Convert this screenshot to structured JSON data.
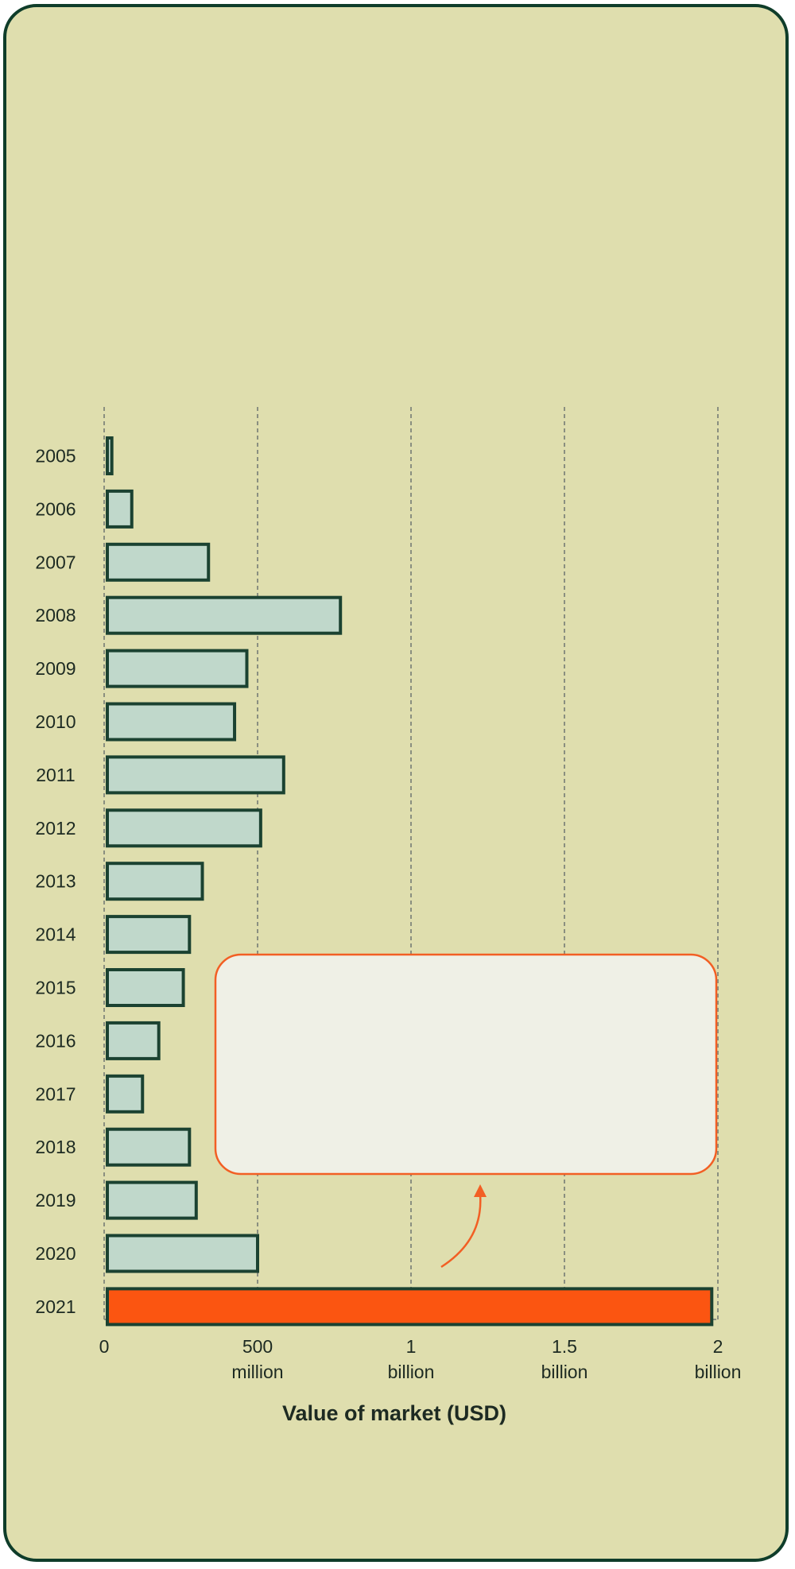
{
  "chart_data": {
    "type": "bar",
    "orientation": "horizontal",
    "categories": [
      "2005",
      "2006",
      "2007",
      "2008",
      "2009",
      "2010",
      "2011",
      "2012",
      "2013",
      "2014",
      "2015",
      "2016",
      "2017",
      "2018",
      "2019",
      "2020",
      "2021"
    ],
    "values": [
      25000000,
      90000000,
      340000000,
      770000000,
      465000000,
      425000000,
      585000000,
      510000000,
      320000000,
      278000000,
      258000000,
      178000000,
      125000000,
      278000000,
      300000000,
      500000000,
      1980000000
    ],
    "highlight_category": "2021",
    "xlabel": "Value of market (USD)",
    "ylabel": "",
    "title": "",
    "xlim": [
      0,
      2000000000
    ],
    "x_ticks": [
      {
        "value": 0,
        "line1": "0",
        "line2": ""
      },
      {
        "value": 500000000,
        "line1": "500",
        "line2": "million"
      },
      {
        "value": 1000000000,
        "line1": "1",
        "line2": "billion"
      },
      {
        "value": 1500000000,
        "line1": "1.5",
        "line2": "billion"
      },
      {
        "value": 2000000000,
        "line1": "2",
        "line2": "billion"
      }
    ],
    "grid": "vertical dashed",
    "colors": {
      "bar": "#c0d8cb",
      "bar_highlight": "#fb5511",
      "bar_stroke": "#1b4231",
      "annotation": "#f25f24",
      "annotation_fill": "#eff0e6",
      "background": "#dfdeae"
    }
  }
}
